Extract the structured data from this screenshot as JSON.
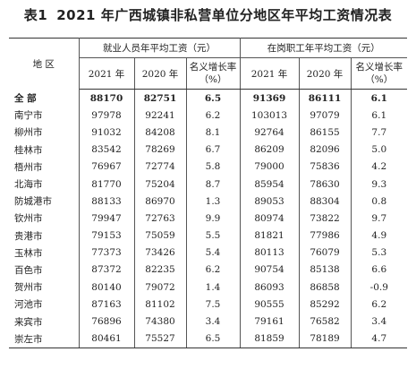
{
  "title": {
    "number": "表1",
    "text": "2021 年广西城镇非私营单位分地区年平均工资情况表"
  },
  "header": {
    "region": "地 区",
    "group1": "就业人员年平均工资（元）",
    "group2": "在岗职工年平均工资（元）",
    "y2021": "2021 年",
    "y2020": "2020 年",
    "growth": "名义增长率",
    "growth_unit": "（%）"
  },
  "rows": [
    {
      "name": "全  部",
      "e2021": "88170",
      "e2020": "82751",
      "eg": "6.5",
      "p2021": "91369",
      "p2020": "86111",
      "pg": "6.1",
      "total": true
    },
    {
      "name": "南宁市",
      "e2021": "97978",
      "e2020": "92241",
      "eg": "6.2",
      "p2021": "103013",
      "p2020": "97079",
      "pg": "6.1"
    },
    {
      "name": "柳州市",
      "e2021": "91032",
      "e2020": "84208",
      "eg": "8.1",
      "p2021": "92764",
      "p2020": "86155",
      "pg": "7.7"
    },
    {
      "name": "桂林市",
      "e2021": "83542",
      "e2020": "78269",
      "eg": "6.7",
      "p2021": "86209",
      "p2020": "82096",
      "pg": "5.0"
    },
    {
      "name": "梧州市",
      "e2021": "76967",
      "e2020": "72774",
      "eg": "5.8",
      "p2021": "79000",
      "p2020": "75836",
      "pg": "4.2"
    },
    {
      "name": "北海市",
      "e2021": "81770",
      "e2020": "75204",
      "eg": "8.7",
      "p2021": "85954",
      "p2020": "78630",
      "pg": "9.3"
    },
    {
      "name": "防城港市",
      "e2021": "88133",
      "e2020": "86970",
      "eg": "1.3",
      "p2021": "89053",
      "p2020": "88304",
      "pg": "0.8"
    },
    {
      "name": "钦州市",
      "e2021": "79947",
      "e2020": "72763",
      "eg": "9.9",
      "p2021": "80974",
      "p2020": "73822",
      "pg": "9.7"
    },
    {
      "name": "贵港市",
      "e2021": "79153",
      "e2020": "75059",
      "eg": "5.5",
      "p2021": "81821",
      "p2020": "77986",
      "pg": "4.9"
    },
    {
      "name": "玉林市",
      "e2021": "77373",
      "e2020": "73426",
      "eg": "5.4",
      "p2021": "80113",
      "p2020": "76079",
      "pg": "5.3"
    },
    {
      "name": "百色市",
      "e2021": "87372",
      "e2020": "82235",
      "eg": "6.2",
      "p2021": "90754",
      "p2020": "85138",
      "pg": "6.6"
    },
    {
      "name": "贺州市",
      "e2021": "80140",
      "e2020": "79072",
      "eg": "1.4",
      "p2021": "86093",
      "p2020": "86858",
      "pg": "-0.9"
    },
    {
      "name": "河池市",
      "e2021": "87163",
      "e2020": "81102",
      "eg": "7.5",
      "p2021": "90555",
      "p2020": "85292",
      "pg": "6.2"
    },
    {
      "name": "来宾市",
      "e2021": "76896",
      "e2020": "74380",
      "eg": "3.4",
      "p2021": "79161",
      "p2020": "76582",
      "pg": "3.4"
    },
    {
      "name": "崇左市",
      "e2021": "80461",
      "e2020": "75527",
      "eg": "6.5",
      "p2021": "81859",
      "p2020": "78189",
      "pg": "4.7"
    }
  ]
}
